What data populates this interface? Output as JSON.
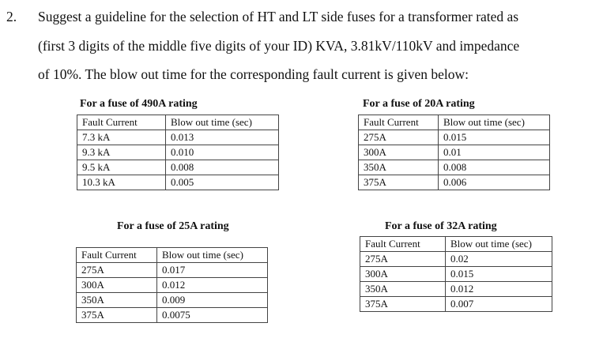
{
  "question": {
    "number": "2.",
    "lines": [
      "Suggest a guideline for the selection of HT and LT side fuses for a transformer rated as",
      "(first 3 digits of the middle five digits of your ID) KVA, 3.81kV/110kV and impedance",
      "of 10%. The blow out time for the corresponding fault current is given below:"
    ]
  },
  "tables": [
    {
      "caption": "For a fuse of 490A rating",
      "header": [
        "Fault Current",
        "Blow out time (sec)"
      ],
      "rows": [
        [
          "7.3 kA",
          "0.013"
        ],
        [
          "9.3 kA",
          "0.010"
        ],
        [
          "9.5 kA",
          "0.008"
        ],
        [
          "10.3 kA",
          "0.005"
        ]
      ]
    },
    {
      "caption": "For a fuse of 20A rating",
      "header": [
        "Fault Current",
        "Blow out time (sec)"
      ],
      "rows": [
        [
          "275A",
          "0.015"
        ],
        [
          "300A",
          "0.01"
        ],
        [
          "350A",
          "0.008"
        ],
        [
          "375A",
          "0.006"
        ]
      ]
    },
    {
      "caption": "For a fuse of 25A rating",
      "header": [
        "Fault Current",
        "Blow out time (sec)"
      ],
      "rows": [
        [
          "275A",
          "0.017"
        ],
        [
          "300A",
          "0.012"
        ],
        [
          "350A",
          "0.009"
        ],
        [
          "375A",
          "0.0075"
        ]
      ]
    },
    {
      "caption": "For a fuse of 32A rating",
      "header": [
        "Fault Current",
        "Blow out time (sec)"
      ],
      "rows": [
        [
          "275A",
          "0.02"
        ],
        [
          "300A",
          "0.015"
        ],
        [
          "350A",
          "0.012"
        ],
        [
          "375A",
          "0.007"
        ]
      ]
    }
  ]
}
